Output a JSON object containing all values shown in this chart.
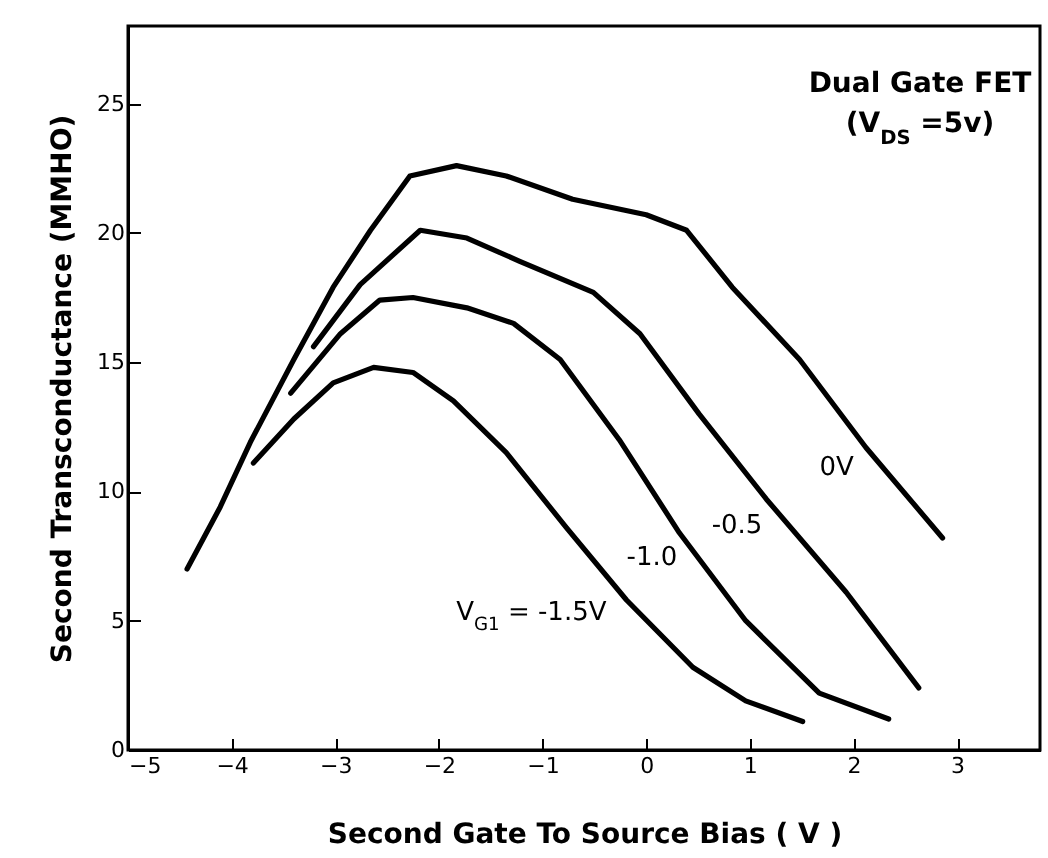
{
  "chart_data": {
    "type": "line",
    "xlabel": "Second Gate To Source Bias ( V )",
    "ylabel": "Second Transconductance  (MMHO)",
    "annotations": [
      "Dual Gate FET",
      "(V$_{DS}$ =5v)"
    ],
    "xlim": [
      -5,
      3.8
    ],
    "xticks": [
      -5,
      -4,
      -3,
      -2,
      -1,
      0,
      1,
      2,
      3
    ],
    "ylim": [
      0,
      28
    ],
    "yticks": [
      0,
      5,
      10,
      15,
      20,
      25
    ],
    "line_style": "solid",
    "series": [
      {
        "name": "0V",
        "color": "#000000",
        "x": [
          -4.43,
          -4.11,
          -3.82,
          -3.4,
          -3.02,
          -2.66,
          -2.28,
          -1.83,
          -1.35,
          -0.71,
          0,
          0.39,
          0.83,
          1.48,
          2.12,
          2.86
        ],
        "values": [
          7.0,
          9.4,
          11.9,
          15.1,
          17.9,
          20.1,
          22.2,
          22.6,
          22.2,
          21.3,
          20.7,
          20.1,
          17.9,
          15.1,
          11.7,
          8.2
        ]
      },
      {
        "name": "-0.5",
        "color": "#000000",
        "x": [
          -3.21,
          -2.76,
          -2.18,
          -1.73,
          -1.22,
          -0.51,
          -0.06,
          0.51,
          1.16,
          1.93,
          2.63
        ],
        "values": [
          15.6,
          18.0,
          20.1,
          19.8,
          18.9,
          17.7,
          16.1,
          13.0,
          9.7,
          6.1,
          2.4
        ]
      },
      {
        "name": "-1.0",
        "color": "#000000",
        "x": [
          -3.43,
          -2.95,
          -2.57,
          -2.25,
          -1.73,
          -1.28,
          -0.83,
          -0.26,
          0.32,
          0.96,
          1.67,
          2.34
        ],
        "values": [
          13.8,
          16.1,
          17.4,
          17.5,
          17.1,
          16.5,
          15.1,
          12.0,
          8.4,
          5.0,
          2.2,
          1.2
        ]
      },
      {
        "name": "V$_{G1}$ = -1.5V",
        "color": "#000000",
        "x": [
          -3.79,
          -3.4,
          -3.02,
          -2.63,
          -2.25,
          -1.86,
          -1.35,
          -0.77,
          -0.19,
          0.45,
          0.96,
          1.51
        ],
        "values": [
          11.1,
          12.8,
          14.2,
          14.8,
          14.6,
          13.5,
          11.5,
          8.6,
          5.8,
          3.2,
          1.9,
          1.1
        ]
      }
    ]
  }
}
